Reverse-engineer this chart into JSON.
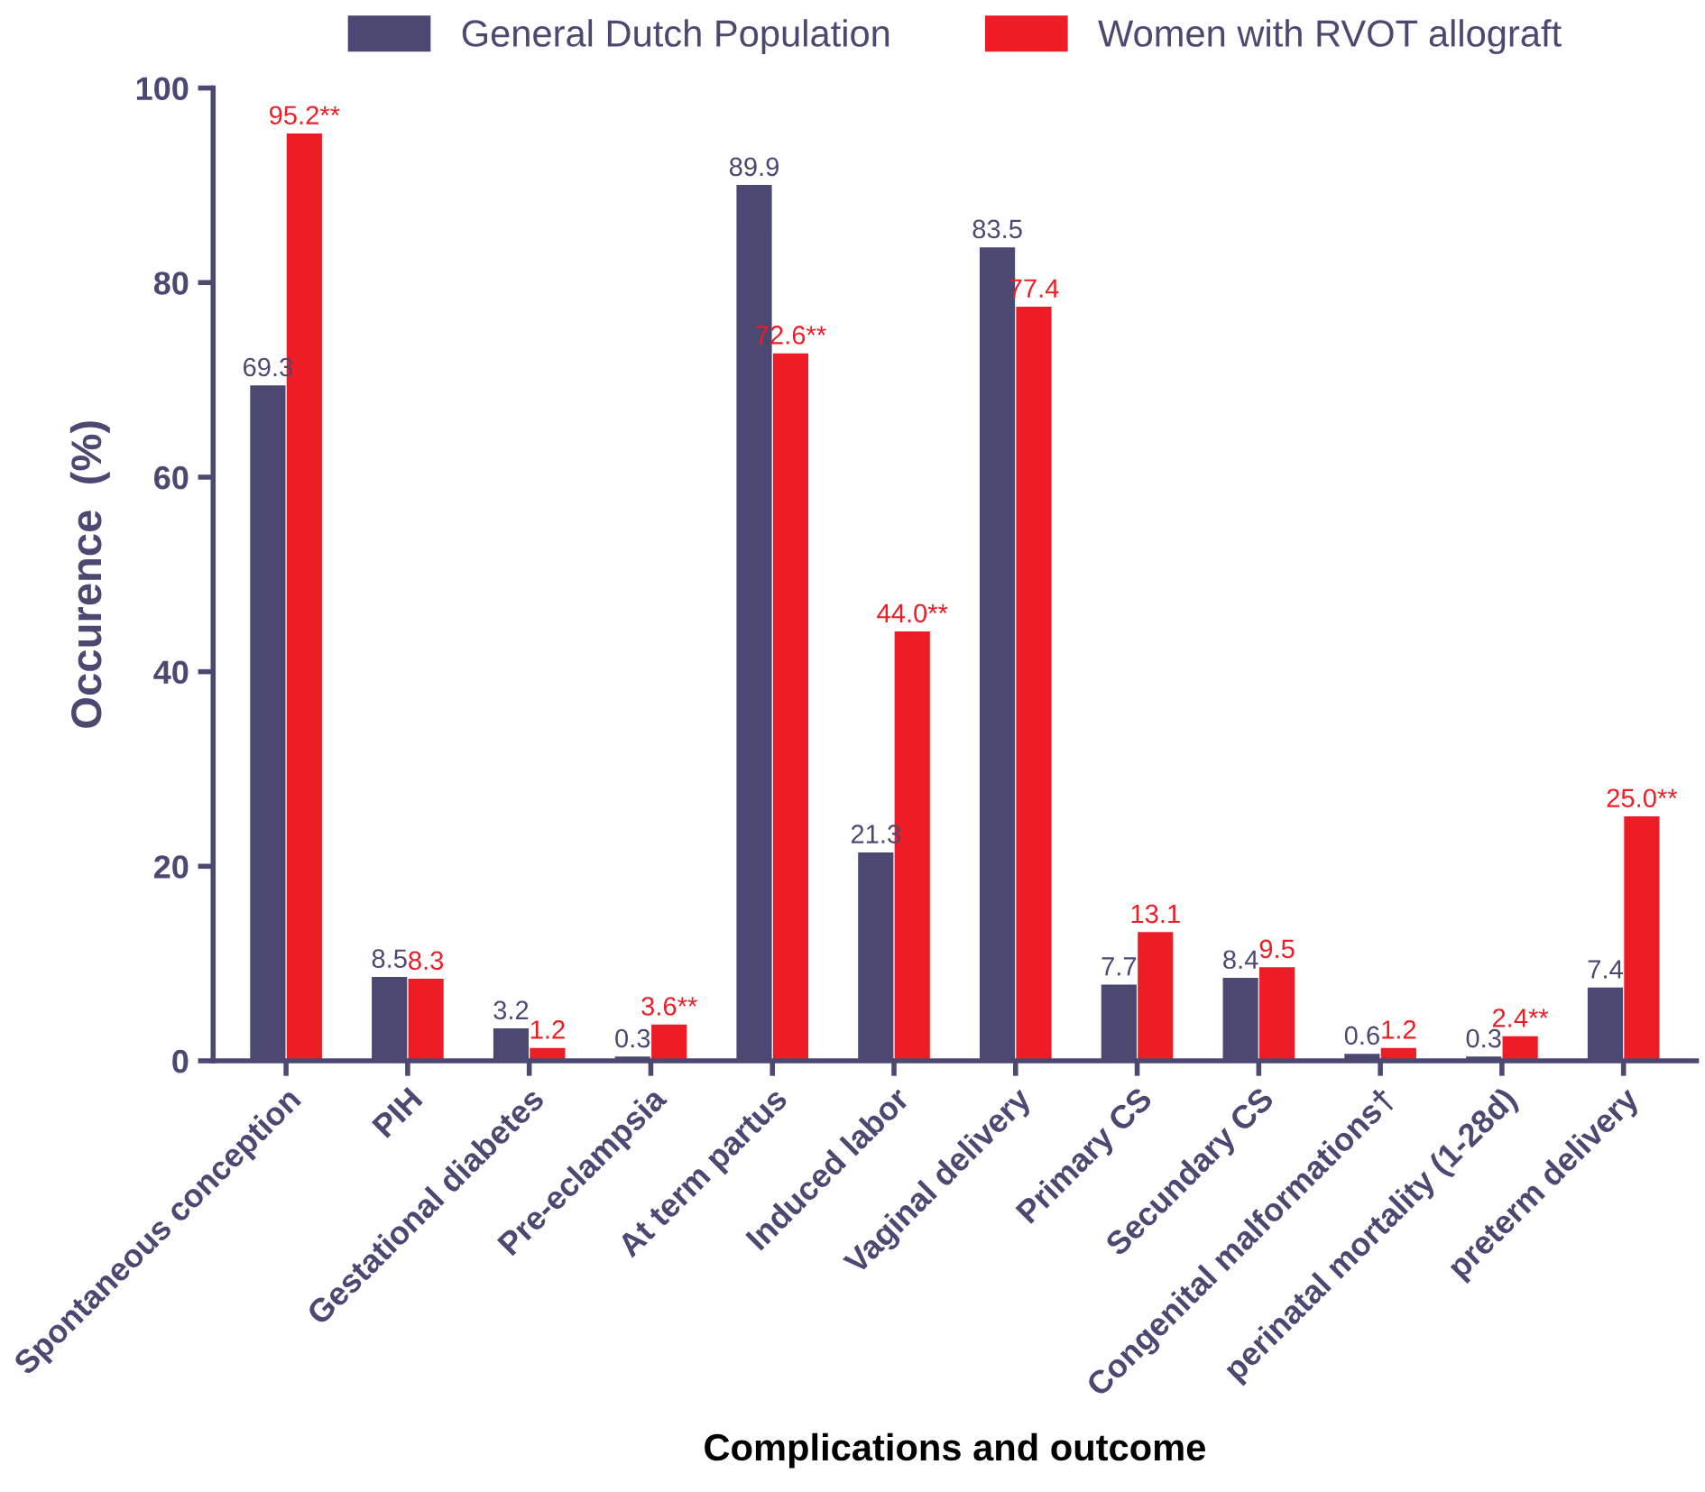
{
  "chart_data": {
    "type": "bar",
    "xlabel": "Complications and outcome",
    "ylabel": "Occurence  (%)",
    "categories": [
      "Spontaneous conception",
      "PIH",
      "Gestational diabetes",
      "Pre-eclampsia",
      "At term partus",
      "Induced labor",
      "Vaginal delivery",
      "Primary CS",
      "Secundary CS",
      "Congenital malformations†",
      "perinatal mortality (1-28d)",
      "preterm delivery"
    ],
    "series": [
      {
        "name": "General Dutch Population",
        "color": "#4b4871",
        "values": [
          69.3,
          8.5,
          3.2,
          0.3,
          89.9,
          21.3,
          83.5,
          7.7,
          8.4,
          0.6,
          0.3,
          7.4
        ],
        "value_labels": [
          "69.3",
          "8.5",
          "3.2",
          "0.3",
          "89.9",
          "21.3",
          "83.5",
          "7.7",
          "8.4",
          "0.6",
          "0.3",
          "7.4"
        ]
      },
      {
        "name": "Women with RVOT allograft",
        "color": "#ee1c25",
        "values": [
          95.2,
          8.3,
          1.2,
          3.6,
          72.6,
          44.0,
          77.4,
          13.1,
          9.5,
          1.2,
          2.4,
          25.0
        ],
        "value_labels": [
          "95.2**",
          "8.3",
          "1.2",
          "3.6**",
          "72.6**",
          "44.0**",
          "77.4",
          "13.1",
          "9.5",
          "1.2",
          "2.4**",
          "25.0**"
        ]
      }
    ],
    "ylim": [
      0,
      100
    ],
    "yticks": [
      0,
      20,
      40,
      60,
      80,
      100
    ],
    "grid": false,
    "legend": "top"
  }
}
